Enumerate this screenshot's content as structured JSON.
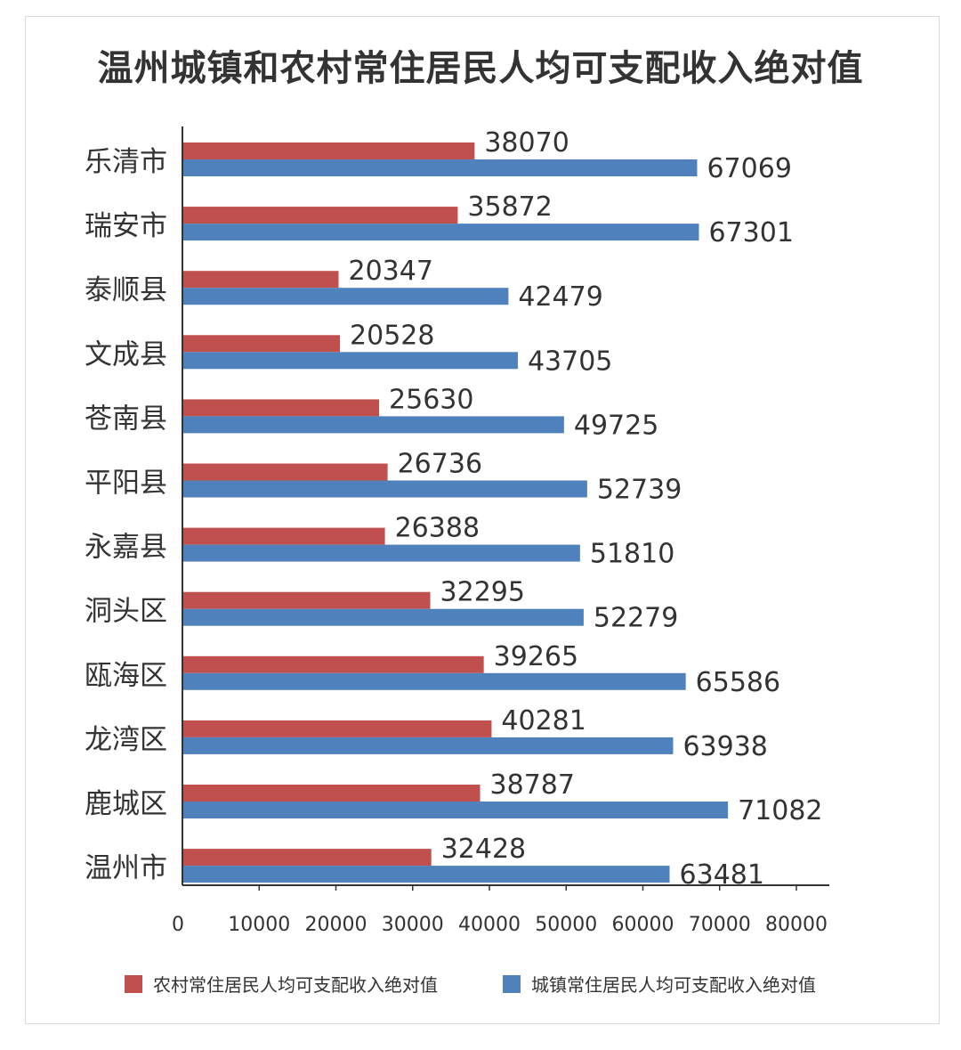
{
  "title": "温州城镇和农村常住居民人均可支配收入绝对值",
  "colors": {
    "rural": "#c0504d",
    "urban": "#4f81bd",
    "axis": "#333333",
    "text": "#333333"
  },
  "chart_data": {
    "type": "bar",
    "orientation": "horizontal",
    "title": "温州城镇和农村常住居民人均可支配收入绝对值",
    "categories": [
      "乐清市",
      "瑞安市",
      "泰顺县",
      "文成县",
      "苍南县",
      "平阳县",
      "永嘉县",
      "洞头区",
      "瓯海区",
      "龙湾区",
      "鹿城区",
      "温州市"
    ],
    "series": [
      {
        "name": "农村常住居民人均可支配收入绝对值",
        "color": "#c0504d",
        "values": [
          38070,
          35872,
          20347,
          20528,
          25630,
          26736,
          26388,
          32295,
          39265,
          40281,
          38787,
          32428
        ]
      },
      {
        "name": "城镇常住居民人均可支配收入绝对值",
        "color": "#4f81bd",
        "values": [
          67069,
          67301,
          42479,
          43705,
          49725,
          52739,
          51810,
          52279,
          65586,
          63938,
          71082,
          63481
        ]
      }
    ],
    "xlim": [
      0,
      80000
    ],
    "xticks": [
      "0",
      "10000",
      "20000",
      "30000",
      "40000",
      "50000",
      "60000",
      "70000",
      "80000"
    ],
    "data_labels": true,
    "grid": false,
    "legend_position": "bottom"
  }
}
